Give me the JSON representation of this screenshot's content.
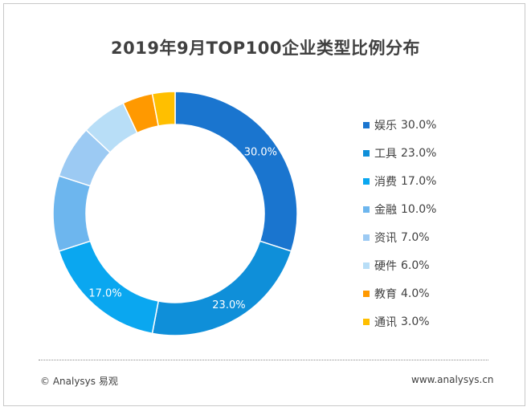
{
  "title": "2019年9月TOP100企业类型比例分布",
  "chart_data": {
    "type": "pie",
    "title": "2019年9月TOP100企业类型比例分布",
    "legend_placement": "right",
    "categories": [
      "娱乐",
      "工具",
      "消费",
      "金融",
      "资讯",
      "硬件",
      "教育",
      "通讯"
    ],
    "values": [
      30.0,
      23.0,
      17.0,
      10.0,
      7.0,
      6.0,
      4.0,
      3.0
    ],
    "value_labels": [
      "30.0%",
      "23.0%",
      "17.0%",
      "10.0%",
      "7.0%",
      "6.0%",
      "4.0%",
      "3.0%"
    ],
    "shown_data_labels": [
      "30.0%",
      "23.0%",
      "17.0%"
    ],
    "colors": [
      "#1a75cf",
      "#0f8fd9",
      "#0aa7f0",
      "#6db6ee",
      "#9ccaf3",
      "#b8def7",
      "#ff9900",
      "#ffbf00"
    ]
  },
  "footer": {
    "copyright": "© Analysys 易观",
    "website": "www.analysys.cn"
  }
}
